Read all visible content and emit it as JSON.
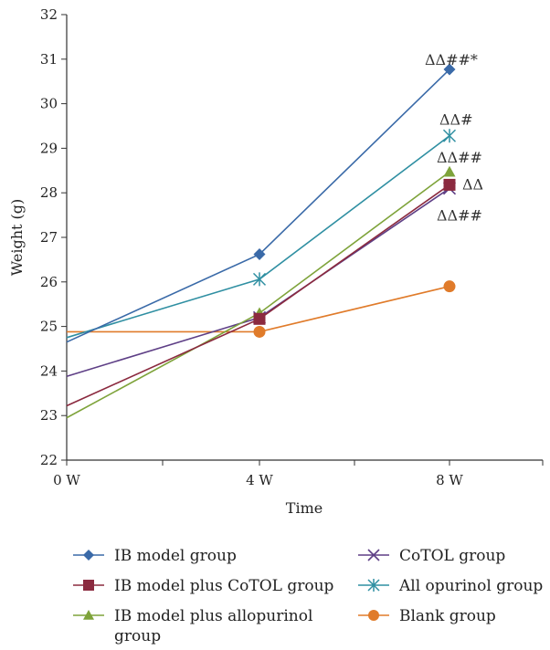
{
  "chart_data": {
    "type": "line",
    "title": "",
    "xlabel": "Time",
    "ylabel": "Weight (g)",
    "categories": [
      "0 W",
      "4 W",
      "8 W"
    ],
    "ylim": [
      22,
      32
    ],
    "yticks": [
      22,
      23,
      24,
      25,
      26,
      27,
      28,
      29,
      30,
      31,
      32
    ],
    "grid": false,
    "legend_position": "bottom",
    "series": [
      {
        "name": "IB model group",
        "values": [
          24.65,
          26.62,
          30.77
        ],
        "color": "#3a6aa8",
        "marker": "diamond"
      },
      {
        "name": "IB model plus CoTOL group",
        "values": [
          23.22,
          25.17,
          28.18
        ],
        "color": "#8b2a3f",
        "marker": "square"
      },
      {
        "name": "IB model plus allopurinol group",
        "values": [
          22.95,
          25.3,
          28.47
        ],
        "color": "#7ea33a",
        "marker": "triangle"
      },
      {
        "name": "CoTOL group",
        "values": [
          23.88,
          25.2,
          28.1
        ],
        "color": "#5e3f86",
        "marker": "x"
      },
      {
        "name": "All opurinol group",
        "values": [
          24.75,
          26.06,
          29.28
        ],
        "color": "#2f8fa2",
        "marker": "asterisk"
      },
      {
        "name": "Blank group",
        "values": [
          24.88,
          24.88,
          25.9
        ],
        "color": "#e07b2a",
        "marker": "circle"
      }
    ],
    "annotations": [
      {
        "text": "ΔΔ##*",
        "x": "8 W",
        "y": 31.0
      },
      {
        "text": "ΔΔ#",
        "x": "8 W",
        "y": 29.65
      },
      {
        "text": "ΔΔ##",
        "x": "8 W",
        "y": 28.8
      },
      {
        "text": "ΔΔ",
        "x": "8 W",
        "y": 28.2
      },
      {
        "text": "ΔΔ##",
        "x": "8 W",
        "y": 27.5
      }
    ]
  }
}
